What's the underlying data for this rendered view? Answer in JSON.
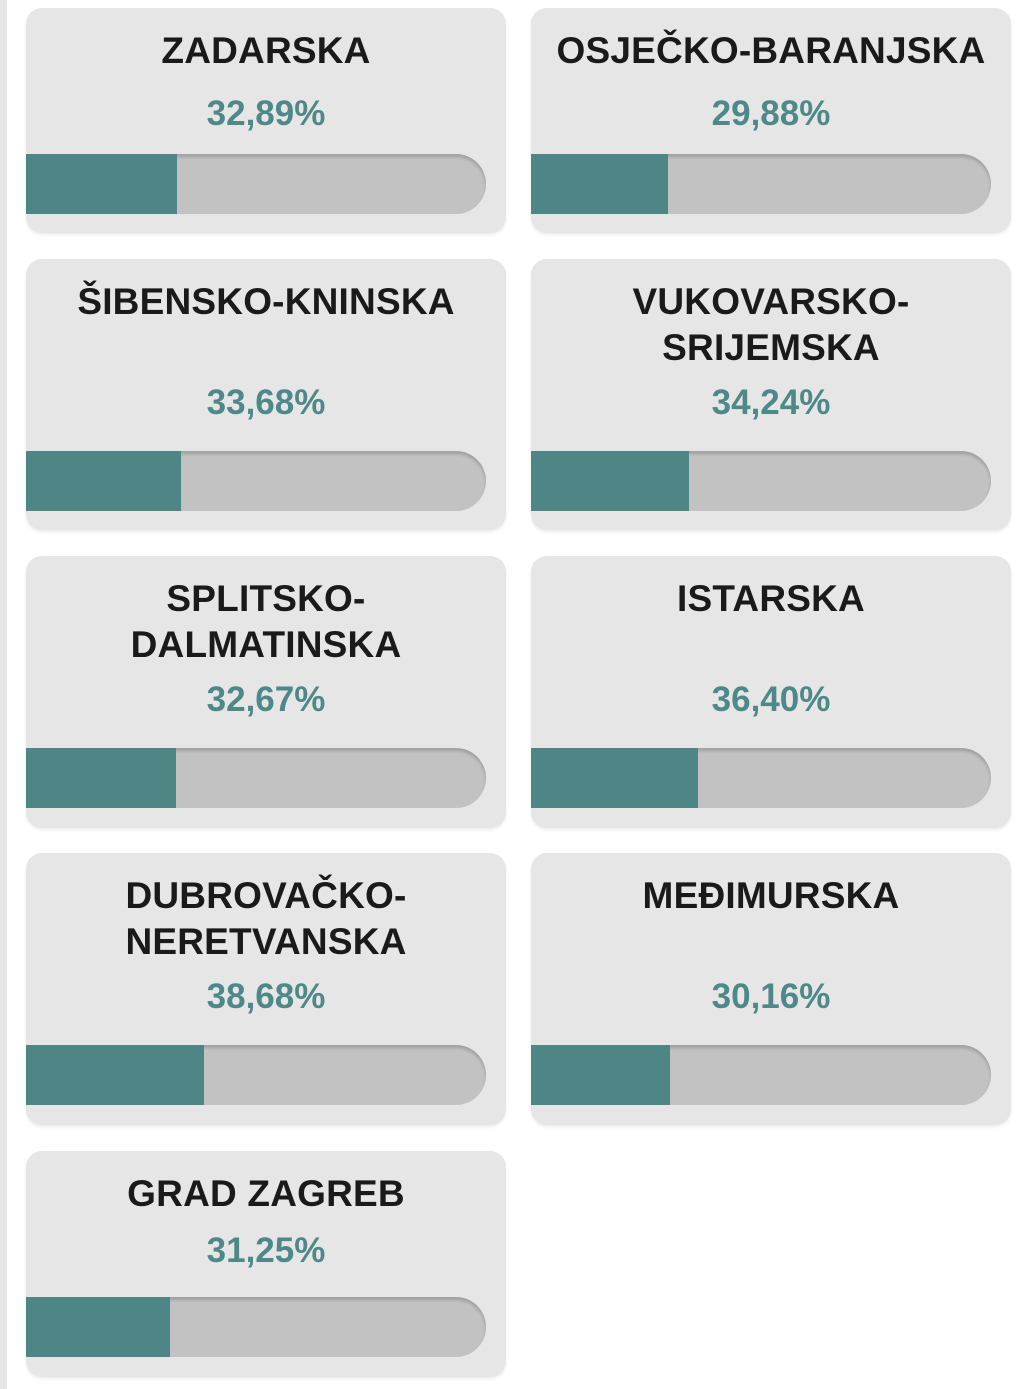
{
  "accent_color": "#4e8686",
  "counties": [
    {
      "name": "ZADARSKA",
      "value_label": "32,89%",
      "value": 32.89
    },
    {
      "name": "OSJEČKO-BARANJSKA",
      "value_label": "29,88%",
      "value": 29.88
    },
    {
      "name": "ŠIBENSKO-KNINSKA",
      "value_label": "33,68%",
      "value": 33.68
    },
    {
      "name": "VUKOVARSKO-SRIJEMSKA",
      "value_label": "34,24%",
      "value": 34.24
    },
    {
      "name": "SPLITSKO-DALMATINSKA",
      "value_label": "32,67%",
      "value": 32.67
    },
    {
      "name": "ISTARSKA",
      "value_label": "36,40%",
      "value": 36.4
    },
    {
      "name": "DUBROVAČKO-NERETVANSKA",
      "value_label": "38,68%",
      "value": 38.68
    },
    {
      "name": "MEĐIMURSKA",
      "value_label": "30,16%",
      "value": 30.16
    },
    {
      "name": "GRAD ZAGREB",
      "value_label": "31,25%",
      "value": 31.25
    }
  ]
}
